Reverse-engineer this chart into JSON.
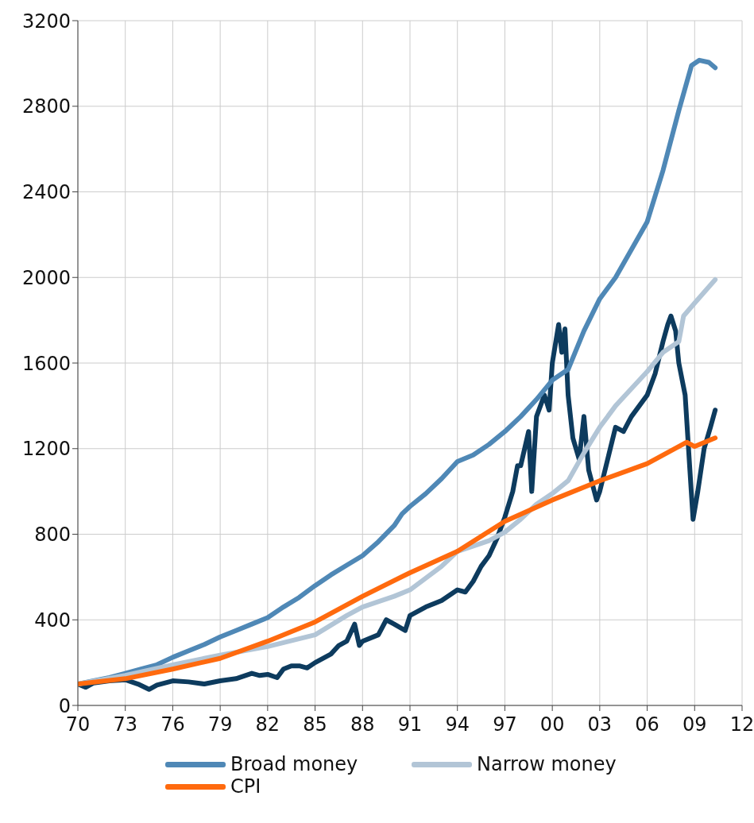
{
  "chart_data": {
    "type": "line",
    "xlim": [
      1970,
      2012
    ],
    "xticks": [
      {
        "value": 1970,
        "label": "70"
      },
      {
        "value": 1973,
        "label": "73"
      },
      {
        "value": 1976,
        "label": "76"
      },
      {
        "value": 1979,
        "label": "79"
      },
      {
        "value": 1982,
        "label": "82"
      },
      {
        "value": 1985,
        "label": "85"
      },
      {
        "value": 1988,
        "label": "88"
      },
      {
        "value": 1991,
        "label": "91"
      },
      {
        "value": 1994,
        "label": "94"
      },
      {
        "value": 1997,
        "label": "97"
      },
      {
        "value": 2000,
        "label": "00"
      },
      {
        "value": 2003,
        "label": "03"
      },
      {
        "value": 2006,
        "label": "06"
      },
      {
        "value": 2009,
        "label": "09"
      },
      {
        "value": 2012,
        "label": "12"
      }
    ],
    "ylim": [
      0,
      3200
    ],
    "yticks": [
      0,
      400,
      800,
      1200,
      1600,
      2000,
      2400,
      2800,
      3200
    ],
    "grid": true,
    "legend": "bottom",
    "marker": "none",
    "line_style": "solid",
    "series": [
      {
        "color": "#0d3b5e",
        "x": [
          1970,
          1970.5,
          1971,
          1972,
          1973,
          1973.8,
          1974.5,
          1975,
          1976,
          1977,
          1978,
          1979,
          1980,
          1981,
          1981.5,
          1982,
          1982.6,
          1983,
          1983.5,
          1984,
          1984.5,
          1985,
          1986,
          1986.5,
          1987,
          1987.5,
          1987.8,
          1988,
          1989,
          1989.5,
          1990,
          1990.7,
          1991,
          1992,
          1993,
          1994,
          1994.5,
          1995,
          1995.5,
          1996,
          1996.5,
          1997,
          1997.5,
          1997.8,
          1998,
          1998.5,
          1998.7,
          1999,
          1999.5,
          1999.8,
          2000,
          2000.4,
          2000.6,
          2000.8,
          2001,
          2001.3,
          2001.7,
          2002,
          2002.3,
          2002.8,
          2003,
          2003.5,
          2004,
          2004.5,
          2005,
          2005.5,
          2006,
          2006.5,
          2007,
          2007.3,
          2007.5,
          2007.8,
          2008,
          2008.4,
          2008.7,
          2008.9,
          2009.2,
          2009.6,
          2010,
          2010.3
        ],
        "values": [
          100,
          85,
          105,
          115,
          120,
          100,
          75,
          95,
          115,
          110,
          100,
          115,
          125,
          150,
          140,
          145,
          130,
          170,
          185,
          185,
          175,
          200,
          240,
          280,
          300,
          380,
          280,
          300,
          330,
          400,
          380,
          350,
          420,
          460,
          490,
          540,
          530,
          580,
          650,
          700,
          780,
          880,
          1000,
          1120,
          1120,
          1280,
          1000,
          1350,
          1450,
          1380,
          1600,
          1780,
          1650,
          1760,
          1450,
          1250,
          1150,
          1350,
          1100,
          960,
          1000,
          1150,
          1300,
          1280,
          1350,
          1400,
          1450,
          1550,
          1700,
          1780,
          1820,
          1750,
          1600,
          1450,
          1100,
          870,
          1000,
          1200,
          1300,
          1380
        ]
      },
      {
        "name": "Broad money",
        "color": "#4f88b6",
        "x": [
          1970,
          1971,
          1972,
          1973,
          1974,
          1975,
          1976,
          1977,
          1978,
          1979,
          1980,
          1981,
          1982,
          1983,
          1984,
          1985,
          1986,
          1987,
          1988,
          1989,
          1990,
          1990.5,
          1991,
          1992,
          1993,
          1994,
          1995,
          1996,
          1997,
          1998,
          1999,
          2000,
          2001,
          2002,
          2003,
          2004,
          2005,
          2006,
          2007,
          2008,
          2008.8,
          2009.3,
          2009.9,
          2010.3
        ],
        "values": [
          100,
          115,
          130,
          150,
          170,
          190,
          225,
          255,
          285,
          320,
          350,
          380,
          410,
          460,
          505,
          560,
          610,
          655,
          700,
          765,
          840,
          895,
          930,
          990,
          1060,
          1140,
          1170,
          1220,
          1280,
          1350,
          1430,
          1520,
          1570,
          1750,
          1900,
          2000,
          2130,
          2260,
          2500,
          2780,
          2990,
          3015,
          3005,
          2980
        ]
      },
      {
        "name": "Narrow money",
        "color": "#b2c5d6",
        "x": [
          1970,
          1973,
          1976,
          1979,
          1982,
          1985,
          1987,
          1988,
          1990,
          1991,
          1993,
          1994,
          1996,
          1997,
          1998,
          1999,
          2000,
          2001,
          2002,
          2003,
          2004,
          2005,
          2006,
          2007,
          2008,
          2008.3,
          2009,
          2010.3
        ],
        "values": [
          100,
          140,
          190,
          235,
          275,
          330,
          420,
          460,
          510,
          540,
          650,
          720,
          770,
          810,
          870,
          940,
          990,
          1050,
          1180,
          1300,
          1400,
          1480,
          1560,
          1650,
          1700,
          1820,
          1880,
          1990
        ]
      },
      {
        "name": "CPI",
        "color": "#ff6a0e",
        "x": [
          1970,
          1973,
          1976,
          1979,
          1982,
          1985,
          1988,
          1991,
          1994,
          1997,
          2000,
          2003,
          2006,
          2008.5,
          2009,
          2010.3
        ],
        "values": [
          100,
          125,
          170,
          220,
          300,
          390,
          510,
          620,
          720,
          860,
          960,
          1050,
          1130,
          1230,
          1210,
          1250
        ]
      }
    ]
  }
}
